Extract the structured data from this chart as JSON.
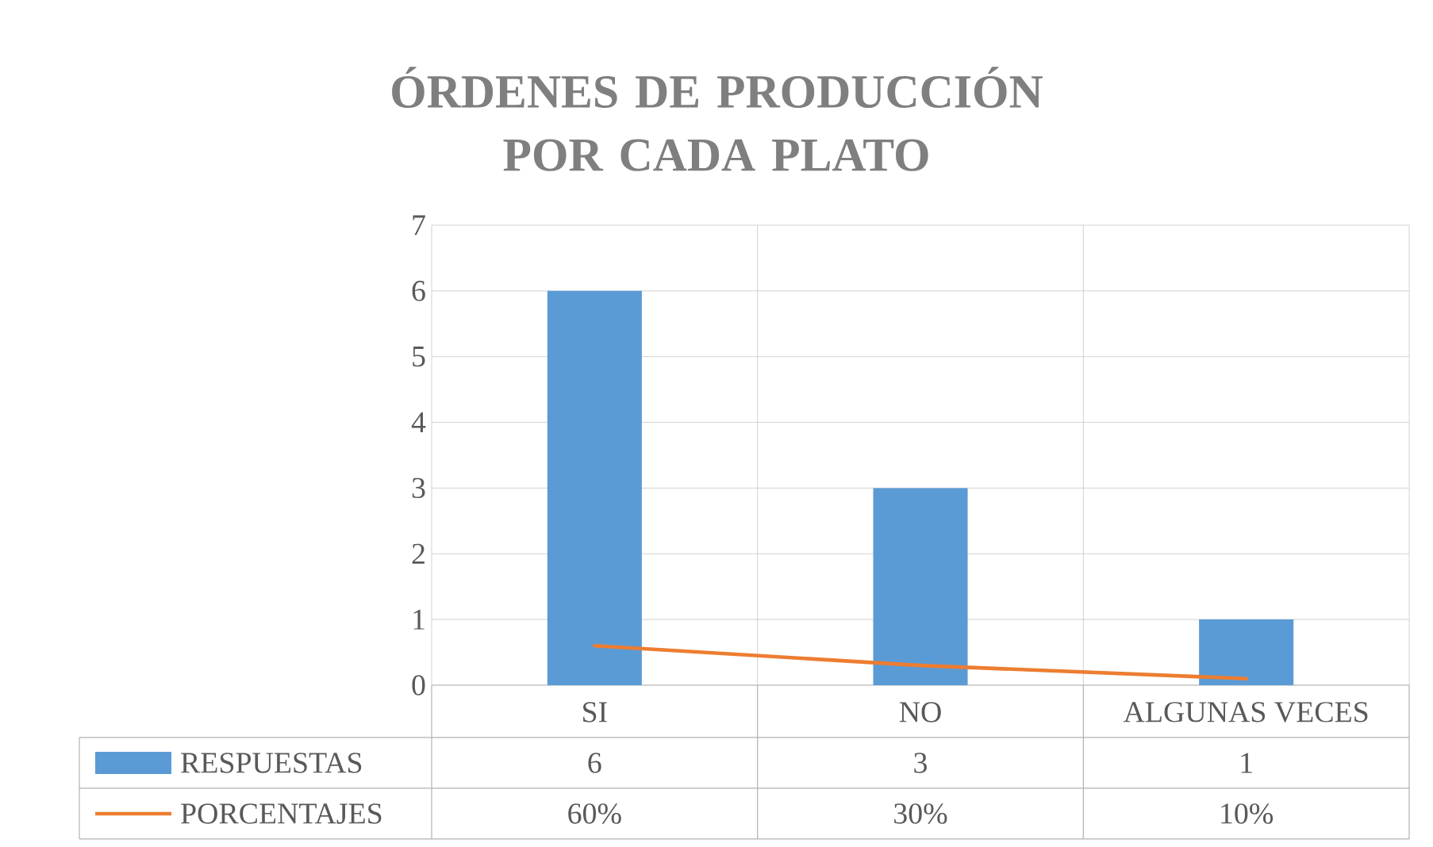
{
  "chart_data": {
    "type": "bar",
    "title": "ÓRDENES DE PRODUCCIÓN POR CADA PLATO",
    "categories": [
      "SI",
      "NO",
      "ALGUNAS VECES"
    ],
    "series": [
      {
        "name": "RESPUESTAS",
        "color": "#5b9bd5",
        "values": [
          6,
          3,
          1
        ],
        "value_labels": [
          "6",
          "3",
          "1"
        ]
      },
      {
        "name": "PORCENTAJES",
        "type": "line",
        "color": "#ed7d31",
        "values": [
          0.6,
          0.3,
          0.1
        ],
        "value_labels": [
          "60%",
          "30%",
          "10%"
        ]
      }
    ],
    "ylim": [
      0,
      7
    ],
    "yticks": [
      0,
      1,
      2,
      3,
      4,
      5,
      6,
      7
    ],
    "grid": true,
    "legend": "bottom"
  }
}
